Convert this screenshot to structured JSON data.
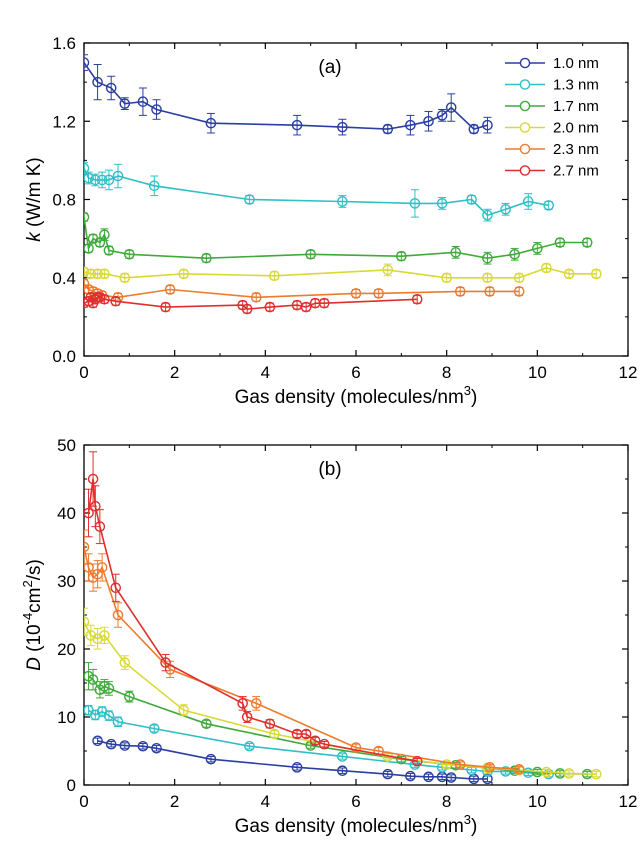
{
  "colors": {
    "1.0 nm": "#2a3f9f",
    "1.3 nm": "#2fbfc6",
    "1.7 nm": "#3faa3a",
    "2.0 nm": "#d9d935",
    "2.3 nm": "#ee7a2e",
    "2.7 nm": "#e02e2e"
  },
  "chart_data": [
    {
      "type": "line",
      "panel_label": "(a)",
      "xlabel": "Gas density (molecules/nm",
      "xlabel_sup": "3",
      "xlabel_end": ")",
      "ylabel_italic": "k",
      "ylabel_rest": " (W/m K)",
      "xlim": [
        0,
        12
      ],
      "ylim": [
        0,
        1.6
      ],
      "xticks": [
        "0",
        "2",
        "4",
        "6",
        "8",
        "10",
        "12"
      ],
      "yticks": [
        "0.0",
        "0.4",
        "0.8",
        "1.2",
        "1.6"
      ],
      "legend": "top-right",
      "series": [
        {
          "name": "1.0 nm",
          "x": [
            0.0,
            0.3,
            0.6,
            0.9,
            1.3,
            1.6,
            2.8,
            4.7,
            5.7,
            6.7,
            7.2,
            7.6,
            7.9,
            8.1,
            8.6,
            8.9
          ],
          "y": [
            1.5,
            1.4,
            1.37,
            1.29,
            1.3,
            1.26,
            1.19,
            1.18,
            1.17,
            1.16,
            1.18,
            1.2,
            1.23,
            1.27,
            1.16,
            1.18
          ],
          "err": [
            0.04,
            0.09,
            0.06,
            0.03,
            0.07,
            0.05,
            0.05,
            0.05,
            0.04,
            0.02,
            0.05,
            0.05,
            0.03,
            0.07,
            0.02,
            0.04
          ]
        },
        {
          "name": "1.3 nm",
          "x": [
            0.0,
            0.1,
            0.25,
            0.4,
            0.55,
            0.75,
            1.55,
            3.65,
            5.7,
            7.3,
            7.9,
            8.55,
            8.9,
            9.3,
            9.8,
            10.25
          ],
          "y": [
            0.96,
            0.91,
            0.9,
            0.9,
            0.9,
            0.92,
            0.87,
            0.8,
            0.79,
            0.78,
            0.78,
            0.8,
            0.72,
            0.75,
            0.79,
            0.77
          ],
          "err": [
            0.03,
            0.03,
            0.03,
            0.04,
            0.05,
            0.06,
            0.05,
            0.02,
            0.03,
            0.07,
            0.03,
            0.02,
            0.03,
            0.03,
            0.04,
            0.02
          ]
        },
        {
          "name": "1.7 nm",
          "x": [
            0.0,
            0.1,
            0.2,
            0.35,
            0.45,
            0.55,
            1.0,
            2.7,
            5.0,
            7.0,
            8.2,
            8.9,
            9.5,
            10.0,
            10.5,
            11.1
          ],
          "y": [
            0.71,
            0.55,
            0.6,
            0.58,
            0.62,
            0.54,
            0.52,
            0.5,
            0.52,
            0.51,
            0.53,
            0.5,
            0.52,
            0.55,
            0.58,
            0.58
          ],
          "err": [
            0.02,
            0.02,
            0.02,
            0.02,
            0.03,
            0.02,
            0.02,
            0.02,
            0.02,
            0.02,
            0.03,
            0.03,
            0.03,
            0.03,
            0.02,
            0.02
          ]
        },
        {
          "name": "2.0 nm",
          "x": [
            0.0,
            0.15,
            0.3,
            0.45,
            0.9,
            2.2,
            4.2,
            6.7,
            8.0,
            8.9,
            9.6,
            10.2,
            10.7,
            11.3
          ],
          "y": [
            0.43,
            0.42,
            0.42,
            0.42,
            0.4,
            0.42,
            0.41,
            0.44,
            0.4,
            0.4,
            0.4,
            0.45,
            0.42,
            0.42
          ],
          "err": [
            0.02,
            0.02,
            0.02,
            0.02,
            0.02,
            0.02,
            0.02,
            0.03,
            0.02,
            0.02,
            0.02,
            0.02,
            0.02,
            0.02
          ]
        },
        {
          "name": "2.3 nm",
          "x": [
            0.0,
            0.1,
            0.2,
            0.3,
            0.4,
            0.75,
            1.9,
            3.8,
            6.0,
            6.5,
            8.3,
            8.95,
            9.6
          ],
          "y": [
            0.37,
            0.34,
            0.33,
            0.32,
            0.31,
            0.3,
            0.34,
            0.3,
            0.32,
            0.32,
            0.33,
            0.33,
            0.33
          ],
          "err": [
            0.02,
            0.02,
            0.02,
            0.02,
            0.02,
            0.02,
            0.02,
            0.02,
            0.02,
            0.02,
            0.02,
            0.02,
            0.02
          ]
        },
        {
          "name": "2.7 nm",
          "x": [
            0.0,
            0.1,
            0.15,
            0.2,
            0.25,
            0.3,
            0.35,
            0.45,
            0.7,
            1.8,
            3.5,
            3.6,
            4.1,
            4.7,
            4.9,
            5.1,
            5.3,
            7.35
          ],
          "y": [
            0.27,
            0.28,
            0.3,
            0.27,
            0.29,
            0.3,
            0.3,
            0.29,
            0.28,
            0.25,
            0.26,
            0.24,
            0.25,
            0.26,
            0.25,
            0.27,
            0.27,
            0.29
          ],
          "err": [
            0.02,
            0.02,
            0.02,
            0.02,
            0.02,
            0.02,
            0.02,
            0.02,
            0.02,
            0.02,
            0.02,
            0.02,
            0.02,
            0.02,
            0.02,
            0.02,
            0.02,
            0.02
          ]
        }
      ]
    },
    {
      "type": "line",
      "panel_label": "(b)",
      "xlabel": "Gas density (molecules/nm",
      "xlabel_sup": "3",
      "xlabel_end": ")",
      "ylabel_italic": "D",
      "ylabel_pre": " (10",
      "ylabel_sup1": "-4",
      "ylabel_mid": "cm",
      "ylabel_sup2": "2",
      "ylabel_end": "/s)",
      "xlim": [
        0,
        12
      ],
      "ylim": [
        0,
        50
      ],
      "xticks": [
        "0",
        "2",
        "4",
        "6",
        "8",
        "10",
        "12"
      ],
      "yticks": [
        "0",
        "10",
        "20",
        "30",
        "40",
        "50"
      ],
      "series": [
        {
          "name": "1.0 nm",
          "x": [
            0.3,
            0.6,
            0.9,
            1.3,
            1.6,
            2.8,
            4.7,
            5.7,
            6.7,
            7.2,
            7.6,
            7.9,
            8.1,
            8.6,
            8.9
          ],
          "y": [
            6.5,
            6.0,
            5.8,
            5.7,
            5.4,
            3.8,
            2.6,
            2.1,
            1.6,
            1.3,
            1.2,
            1.2,
            1.1,
            0.9,
            0.9
          ],
          "err": [
            0.4,
            0.4,
            0.4,
            0.4,
            0.4,
            0.4,
            0.4,
            0.4,
            0.4,
            0.4,
            0.4,
            0.4,
            0.4,
            0.4,
            0.4
          ]
        },
        {
          "name": "1.3 nm",
          "x": [
            0.1,
            0.25,
            0.4,
            0.55,
            0.75,
            1.55,
            3.65,
            5.7,
            7.3,
            7.9,
            8.55,
            8.9,
            9.3,
            9.8,
            10.25
          ],
          "y": [
            11.0,
            10.3,
            10.8,
            10.2,
            9.3,
            8.3,
            5.7,
            4.2,
            3.0,
            2.6,
            2.2,
            2.0,
            2.0,
            1.8,
            1.6
          ],
          "err": [
            0.7,
            0.7,
            0.7,
            0.7,
            0.7,
            0.5,
            0.4,
            0.4,
            0.4,
            0.4,
            0.4,
            0.4,
            0.4,
            0.4,
            0.4
          ]
        },
        {
          "name": "1.7 nm",
          "x": [
            0.1,
            0.2,
            0.35,
            0.45,
            0.55,
            1.0,
            2.7,
            5.0,
            7.0,
            8.2,
            8.9,
            9.5,
            10.0,
            10.5,
            11.1
          ],
          "y": [
            16.0,
            15.5,
            14.0,
            14.5,
            14.2,
            13.0,
            9.0,
            5.8,
            3.8,
            2.9,
            2.5,
            2.1,
            1.9,
            1.7,
            1.6
          ],
          "err": [
            2.0,
            1.5,
            1.2,
            1.0,
            1.0,
            0.8,
            0.5,
            0.4,
            0.4,
            0.4,
            0.4,
            0.4,
            0.4,
            0.4,
            0.4
          ]
        },
        {
          "name": "2.0 nm",
          "x": [
            0.0,
            0.15,
            0.3,
            0.45,
            0.9,
            2.2,
            4.2,
            6.7,
            8.0,
            8.9,
            9.6,
            10.2,
            10.7,
            11.3
          ],
          "y": [
            24.0,
            22.0,
            21.5,
            22.0,
            18.0,
            11.0,
            7.5,
            4.2,
            3.0,
            2.5,
            2.2,
            1.9,
            1.7,
            1.6
          ],
          "err": [
            2.0,
            1.5,
            1.5,
            1.2,
            1.0,
            0.8,
            0.5,
            0.4,
            0.4,
            0.4,
            0.4,
            0.4,
            0.4,
            0.4
          ]
        },
        {
          "name": "2.3 nm",
          "x": [
            0.0,
            0.1,
            0.2,
            0.3,
            0.4,
            0.75,
            1.9,
            3.8,
            6.0,
            6.5,
            8.3,
            8.95,
            9.6
          ],
          "y": [
            35.0,
            32.0,
            30.5,
            31.0,
            32.0,
            25.0,
            17.0,
            12.0,
            5.5,
            5.0,
            3.0,
            2.6,
            2.3
          ],
          "err": [
            2.5,
            2.0,
            2.0,
            2.0,
            2.0,
            1.8,
            1.2,
            1.0,
            0.5,
            0.5,
            0.4,
            0.4,
            0.4
          ]
        },
        {
          "name": "2.7 nm",
          "x": [
            0.1,
            0.2,
            0.25,
            0.35,
            0.7,
            1.8,
            3.5,
            3.6,
            4.1,
            4.7,
            4.9,
            5.1,
            5.3,
            7.35
          ],
          "y": [
            40.0,
            45.0,
            41.0,
            38.0,
            29.0,
            18.0,
            12.0,
            10.0,
            9.0,
            7.5,
            7.5,
            6.5,
            6.0,
            3.5
          ],
          "err": [
            3.5,
            4.0,
            3.0,
            2.5,
            2.0,
            1.2,
            1.0,
            0.8,
            0.6,
            0.5,
            0.5,
            0.5,
            0.4,
            0.4
          ]
        }
      ]
    }
  ]
}
